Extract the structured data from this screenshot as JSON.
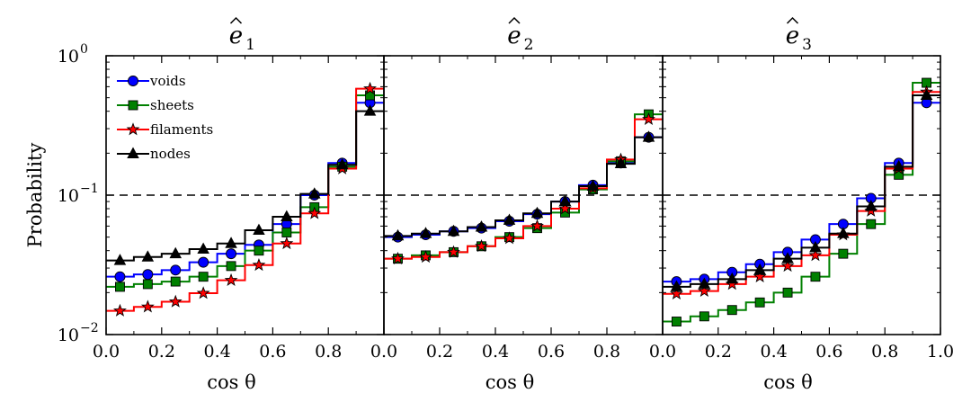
{
  "chart_data": {
    "type": "line",
    "drawstyle": "steps-mid",
    "yscale": "log",
    "ylim": [
      0.01,
      1
    ],
    "xlim": [
      0,
      1
    ],
    "ylabel": "Probability",
    "xlabel": "cos θ",
    "reference_line": 0.1,
    "x_ticks": [
      "0.0",
      "0.2",
      "0.4",
      "0.6",
      "0.8"
    ],
    "x_ticks_last_panel": [
      "0.0",
      "0.2",
      "0.4",
      "0.6",
      "0.8",
      "1.0"
    ],
    "y_ticks": [
      {
        "value": 1,
        "base": "10",
        "exp": "0"
      },
      {
        "value": 0.1,
        "base": "10",
        "exp": "−1"
      },
      {
        "value": 0.01,
        "base": "10",
        "exp": "−2"
      }
    ],
    "x": [
      0.05,
      0.15,
      0.25,
      0.35,
      0.45,
      0.55,
      0.65,
      0.75,
      0.85,
      0.95
    ],
    "legend": {
      "location": "upper left",
      "entries": [
        {
          "label": "voids",
          "color": "#0000ff",
          "marker": "circle"
        },
        {
          "label": "sheets",
          "color": "#008000",
          "marker": "square"
        },
        {
          "label": "filaments",
          "color": "#ff0000",
          "marker": "star"
        },
        {
          "label": "nodes",
          "color": "#000000",
          "marker": "triangle"
        }
      ]
    },
    "panels": [
      {
        "title_letter": "e",
        "title_sub": "1",
        "series": [
          {
            "name": "voids",
            "values": [
              0.026,
              0.027,
              0.029,
              0.033,
              0.038,
              0.044,
              0.062,
              0.1,
              0.17,
              0.46
            ]
          },
          {
            "name": "sheets",
            "values": [
              0.022,
              0.023,
              0.024,
              0.026,
              0.031,
              0.04,
              0.054,
              0.082,
              0.16,
              0.52
            ]
          },
          {
            "name": "filaments",
            "values": [
              0.0148,
              0.0158,
              0.0172,
              0.0198,
              0.0245,
              0.0315,
              0.045,
              0.074,
              0.155,
              0.58
            ]
          },
          {
            "name": "nodes",
            "values": [
              0.034,
              0.036,
              0.038,
              0.041,
              0.045,
              0.056,
              0.07,
              0.102,
              0.165,
              0.4
            ]
          }
        ]
      },
      {
        "title_letter": "e",
        "title_sub": "2",
        "series": [
          {
            "name": "voids",
            "values": [
              0.05,
              0.052,
              0.055,
              0.058,
              0.065,
              0.073,
              0.09,
              0.118,
              0.17,
              0.26
            ]
          },
          {
            "name": "sheets",
            "values": [
              0.035,
              0.037,
              0.039,
              0.043,
              0.05,
              0.058,
              0.075,
              0.11,
              0.175,
              0.38
            ]
          },
          {
            "name": "filaments",
            "values": [
              0.035,
              0.036,
              0.039,
              0.043,
              0.049,
              0.06,
              0.08,
              0.112,
              0.18,
              0.35
            ]
          },
          {
            "name": "nodes",
            "values": [
              0.051,
              0.053,
              0.055,
              0.059,
              0.066,
              0.074,
              0.09,
              0.116,
              0.168,
              0.26
            ]
          }
        ]
      },
      {
        "title_letter": "e",
        "title_sub": "3",
        "series": [
          {
            "name": "voids",
            "values": [
              0.024,
              0.025,
              0.028,
              0.032,
              0.039,
              0.048,
              0.062,
              0.095,
              0.17,
              0.46
            ]
          },
          {
            "name": "sheets",
            "values": [
              0.0124,
              0.0135,
              0.015,
              0.017,
              0.02,
              0.026,
              0.038,
              0.062,
              0.14,
              0.64
            ]
          },
          {
            "name": "filaments",
            "values": [
              0.0196,
              0.0205,
              0.023,
              0.026,
              0.031,
              0.037,
              0.052,
              0.077,
              0.155,
              0.55
            ]
          },
          {
            "name": "nodes",
            "values": [
              0.022,
              0.023,
              0.025,
              0.029,
              0.035,
              0.042,
              0.053,
              0.083,
              0.16,
              0.52
            ]
          }
        ]
      }
    ]
  }
}
